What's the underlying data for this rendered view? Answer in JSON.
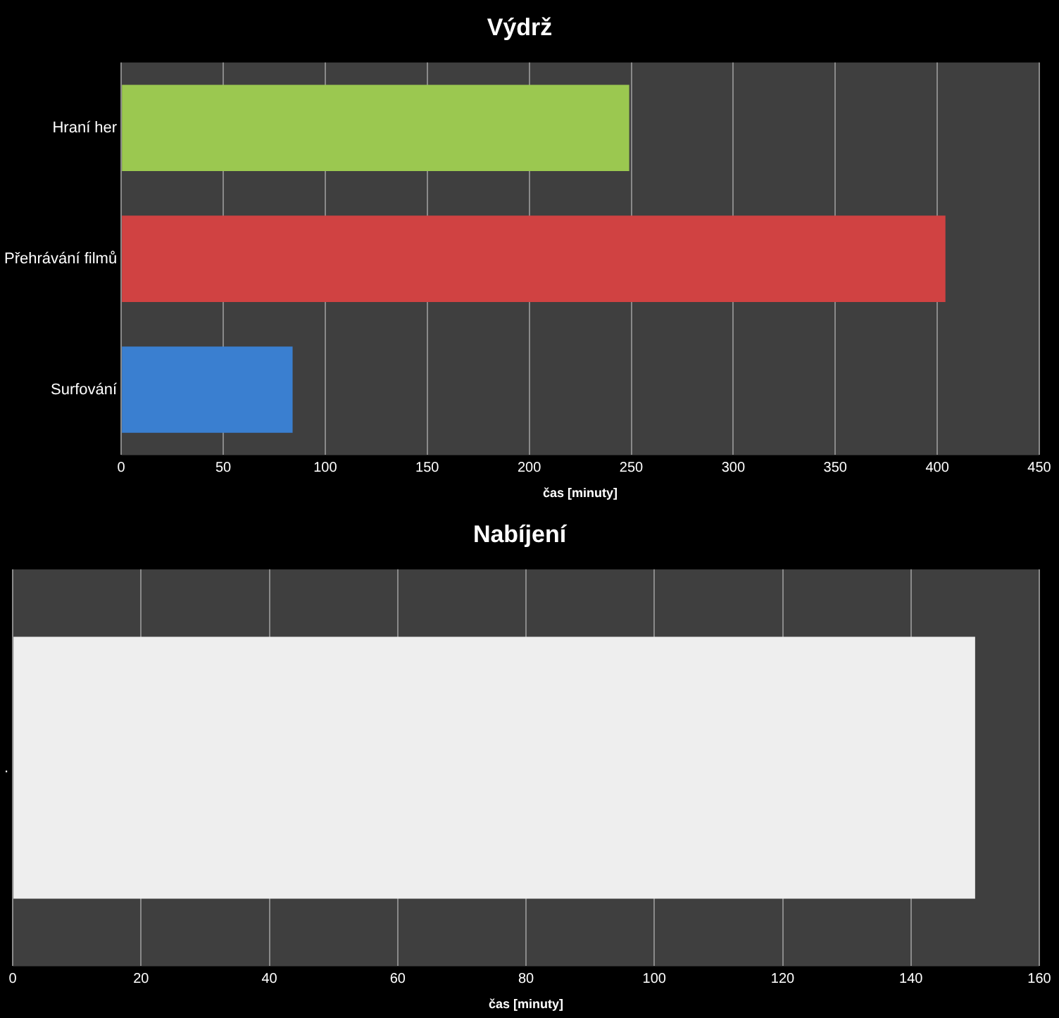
{
  "chart_data": [
    {
      "type": "bar",
      "orientation": "horizontal",
      "title": "Výdrž",
      "xlabel": "čas [minuty]",
      "categories": [
        "Hraní her",
        "Přehrávání filmů",
        "Surfování"
      ],
      "values": [
        249,
        404,
        84
      ],
      "colors": [
        "#9bc850",
        "#d04242",
        "#3a7fd0"
      ],
      "xlim": [
        0,
        450
      ],
      "xticks": [
        0,
        50,
        100,
        150,
        200,
        250,
        300,
        350,
        400,
        450
      ],
      "grid": "x"
    },
    {
      "type": "bar",
      "orientation": "horizontal",
      "title": "Nabíjení",
      "xlabel": "čas [minuty]",
      "categories": [
        "."
      ],
      "values": [
        150
      ],
      "colors": [
        "#eeeeee"
      ],
      "xlim": [
        0,
        160
      ],
      "xticks": [
        0,
        20,
        40,
        60,
        80,
        100,
        120,
        140,
        160
      ],
      "grid": "x"
    }
  ]
}
